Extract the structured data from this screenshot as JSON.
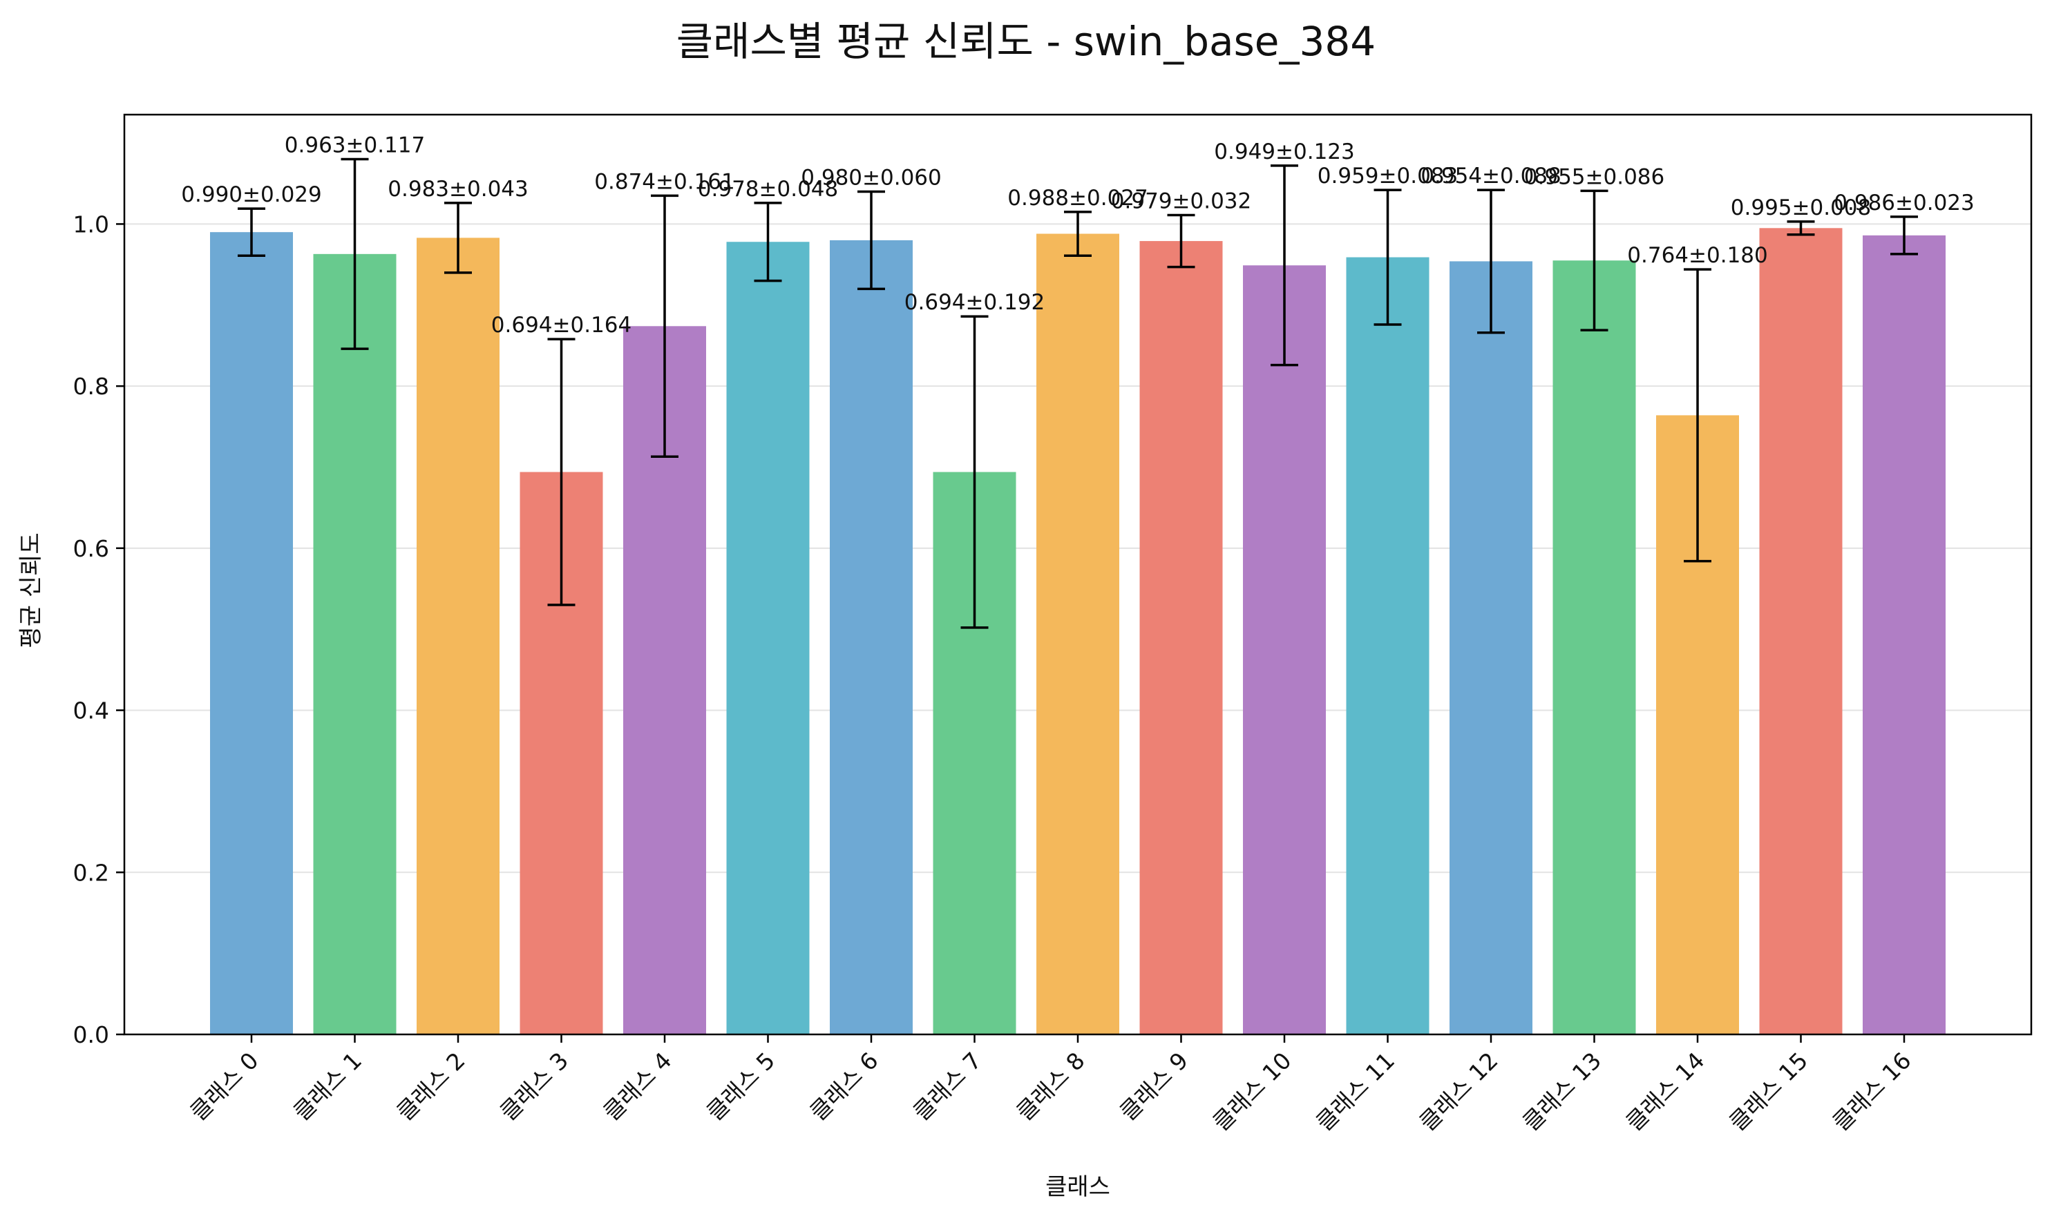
{
  "chart_data": {
    "type": "bar",
    "title": "클래스별 평균 신뢰도 - swin_base_384",
    "xlabel": "클래스",
    "ylabel": "평균 신뢰도",
    "ylim": [
      0,
      1.135
    ],
    "yticks": [
      0.0,
      0.2,
      0.4,
      0.6,
      0.8,
      1.0
    ],
    "ytick_labels": [
      "0.0",
      "0.2",
      "0.4",
      "0.6",
      "0.8",
      "1.0"
    ],
    "grid": "y",
    "categories": [
      "클래스 0",
      "클래스 1",
      "클래스 2",
      "클래스 3",
      "클래스 4",
      "클래스 5",
      "클래스 6",
      "클래스 7",
      "클래스 8",
      "클래스 9",
      "클래스 10",
      "클래스 11",
      "클래스 12",
      "클래스 13",
      "클래스 14",
      "클래스 15",
      "클래스 16"
    ],
    "values": [
      0.99,
      0.963,
      0.983,
      0.694,
      0.874,
      0.978,
      0.98,
      0.694,
      0.988,
      0.979,
      0.949,
      0.959,
      0.954,
      0.955,
      0.764,
      0.995,
      0.986
    ],
    "errors": [
      0.029,
      0.117,
      0.043,
      0.164,
      0.161,
      0.048,
      0.06,
      0.192,
      0.027,
      0.032,
      0.123,
      0.083,
      0.088,
      0.086,
      0.18,
      0.008,
      0.023
    ],
    "data_labels": [
      "0.990±0.029",
      "0.963±0.117",
      "0.983±0.043",
      "0.694±0.164",
      "0.874±0.161",
      "0.978±0.048",
      "0.980±0.060",
      "0.694±0.192",
      "0.988±0.027",
      "0.979±0.032",
      "0.949±0.123",
      "0.959±0.083",
      "0.954±0.088",
      "0.955±0.086",
      "0.764±0.180",
      "0.995±0.008",
      "0.986±0.023"
    ],
    "colors": [
      "#6ea9d4",
      "#68ca8e",
      "#f4b85b",
      "#ed8174",
      "#b07ec5",
      "#5dbacb",
      "#6ea9d4",
      "#68ca8e",
      "#f4b85b",
      "#ed8174",
      "#b07ec5",
      "#5dbacb",
      "#6ea9d4",
      "#68ca8e",
      "#f4b85b",
      "#ed8174",
      "#b07ec5"
    ]
  }
}
